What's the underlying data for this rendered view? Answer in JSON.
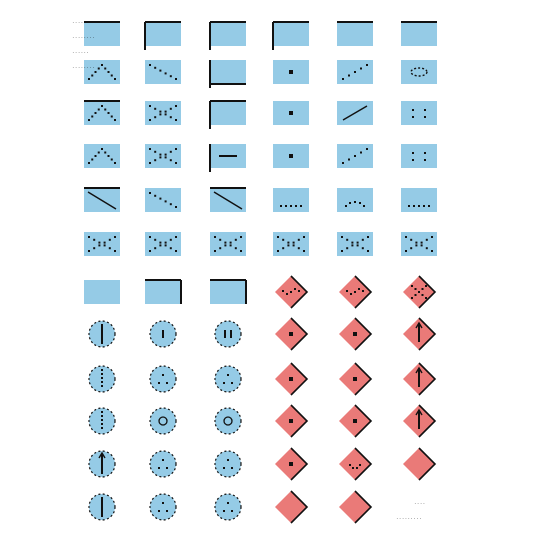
{
  "sheet": {
    "caption_lines": [
      "......",
      "........",
      "......",
      "........"
    ],
    "footnote_lines": [
      "....",
      "........."
    ]
  },
  "palette": {
    "blue_fill": "#95cbe6",
    "red_fill": "#ea7a78",
    "ink": "#111111",
    "background": "#ffffff"
  },
  "glyph_grid": {
    "rows": [
      [
        "frame-top",
        "frame-left-top",
        "frame-left-top",
        "frame-left-top",
        "frame-top",
        "frame-top"
      ],
      [
        "peak-dots",
        "diagonal-down-dots",
        "frame-left-bottom",
        "center-dot",
        "diagonal-up-dots",
        "loop-mark"
      ],
      [
        "peak-cross",
        "cross-dots",
        "frame-left-top",
        "center-dot",
        "diagonal-up",
        "scatter-dots"
      ],
      [
        "peak-dots",
        "cross-dots",
        "bar-mark",
        "center-dot",
        "diagonal-up-dots",
        "scatter-dots"
      ],
      [
        "diagonal-down",
        "diagonal-down-dots",
        "diagonal-down",
        "dash-line",
        "wave-dots",
        "dash-line"
      ],
      [
        "cross-dots",
        "cross-dots",
        "cross-dots",
        "cross-dots",
        "cross-dots",
        "cross-dots"
      ],
      [
        "rect-plain",
        "frame-right",
        "frame-right",
        "diamond-wave",
        "diamond-wave",
        "diamond-cross"
      ],
      [
        "circle-line",
        "circle-bar",
        "circle-double-bar",
        "diamond-dot",
        "diamond-dot",
        "diamond-arrow"
      ],
      [
        "circle-bar-dots",
        "circle-dots",
        "circle-dots",
        "diamond-dot",
        "diamond-dot",
        "diamond-arrow"
      ],
      [
        "circle-bar-dots",
        "circle-ring",
        "circle-ring",
        "diamond-dot",
        "diamond-dot",
        "diamond-arrow"
      ],
      [
        "circle-arrow",
        "circle-dots",
        "circle-dots",
        "diamond-dot",
        "diamond-smile",
        "diamond-plain"
      ],
      [
        "circle-line",
        "circle-dots",
        "circle-dots",
        "diamond-plain",
        "diamond-plain",
        "none"
      ]
    ]
  }
}
